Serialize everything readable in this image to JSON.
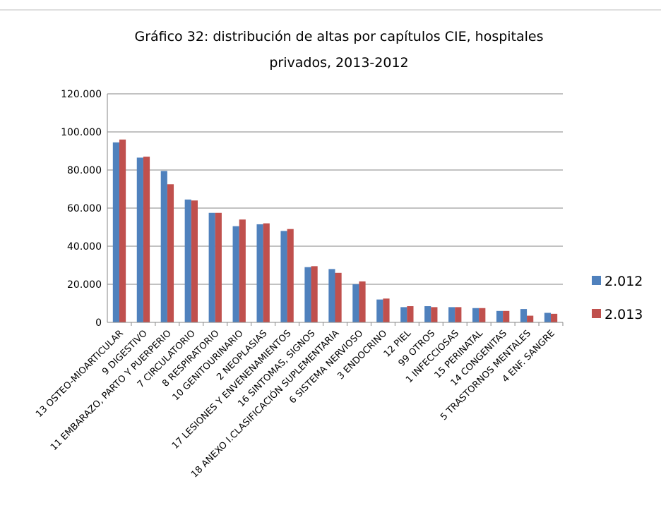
{
  "chart_data": {
    "type": "bar",
    "title": [
      "Gráfico 32: distribución de altas por capítulos CIE, hospitales",
      "privados, 2013-2012"
    ],
    "categories": [
      "13 OSTEO-MIOARTICULAR",
      "9 DIGESTIVO",
      "11 EMBARAZO, PARTO Y PUERPERIO",
      "7 CIRCULATORIO",
      "8 RESPIRATORIO",
      "10 GENITOURINARIO",
      "2 NEOPLASIAS",
      "17 LESIONES Y ENVENENAMIENTOS",
      "16 SINTOMAS, SIGNOS",
      "18 ANEXO I.CLASIFICACIÓN SUPLEMENTARIA",
      "6 SISTEMA NERVIOSO",
      "3 ENDOCRINO",
      "12 PIEL",
      "99 OTROS",
      "1 INFECCIOSAS",
      "15 PERINATAL",
      "14 CONGENITAS",
      "5 TRASTORNOS MENTALES",
      "4 ENF. SANGRE"
    ],
    "series": [
      {
        "name": "2.012",
        "color": "#4f81bd",
        "values": [
          94500,
          86500,
          79500,
          64500,
          57500,
          50500,
          51500,
          48000,
          29000,
          28000,
          20000,
          12000,
          8000,
          8500,
          8000,
          7500,
          6000,
          7000,
          5000
        ]
      },
      {
        "name": "2.013",
        "color": "#c0504d",
        "values": [
          96000,
          87000,
          72500,
          64000,
          57500,
          54000,
          52000,
          49000,
          29500,
          26000,
          21500,
          12500,
          8500,
          8000,
          8000,
          7500,
          6000,
          3500,
          4500
        ]
      }
    ],
    "ylim": [
      0,
      120000
    ],
    "yticks": [
      0,
      {
        "value": 20000,
        "label": "20.000"
      },
      {
        "value": 40000,
        "label": "40.000"
      },
      {
        "value": 60000,
        "label": "60.000"
      },
      {
        "value": 80000,
        "label": "80.000"
      },
      {
        "value": 100000,
        "label": "100.000"
      },
      {
        "value": 120000,
        "label": "120.000"
      }
    ],
    "grid": true,
    "legend": "right"
  }
}
